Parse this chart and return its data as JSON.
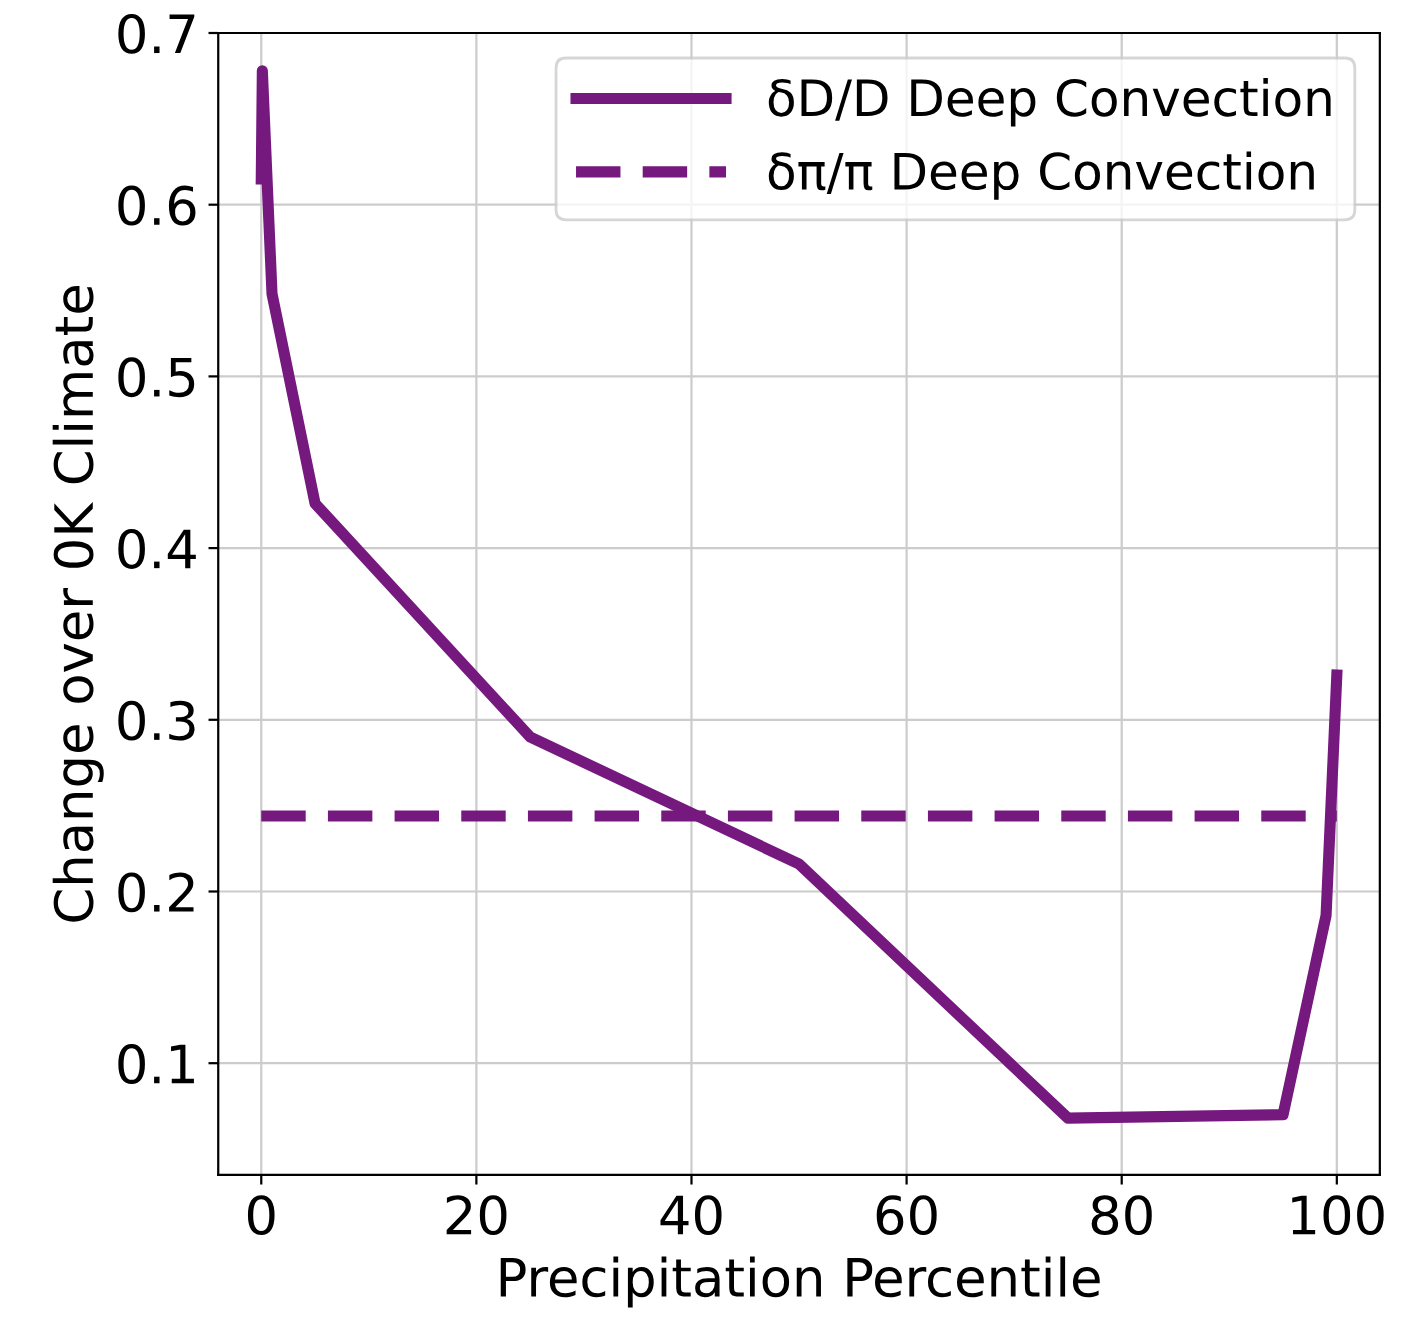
{
  "chart_data": {
    "type": "line",
    "xlabel": "Precipitation Percentile",
    "ylabel": "Change over 0K Climate",
    "xlim": [
      -4,
      104
    ],
    "ylim": [
      0.035,
      0.7
    ],
    "xticks": [
      0,
      20,
      40,
      60,
      80,
      100
    ],
    "yticks": [
      0.1,
      0.2,
      0.3,
      0.4,
      0.5,
      0.6,
      0.7
    ],
    "grid": true,
    "legend": "top right",
    "marker": "none",
    "series": [
      {
        "name": "δD/D Deep Convection",
        "color": "#76197f",
        "line_style": "solid",
        "x": [
          0,
          0.1,
          1,
          5,
          25,
          50,
          75,
          95,
          99,
          100
        ],
        "values": [
          0.615,
          0.678,
          0.548,
          0.426,
          0.29,
          0.216,
          0.068,
          0.07,
          0.186,
          0.326
        ]
      },
      {
        "name": "δπ/π Deep Convection",
        "color": "#76197f",
        "line_style": "dashed",
        "x": [
          0,
          100
        ],
        "values": [
          0.244,
          0.244
        ]
      }
    ]
  }
}
